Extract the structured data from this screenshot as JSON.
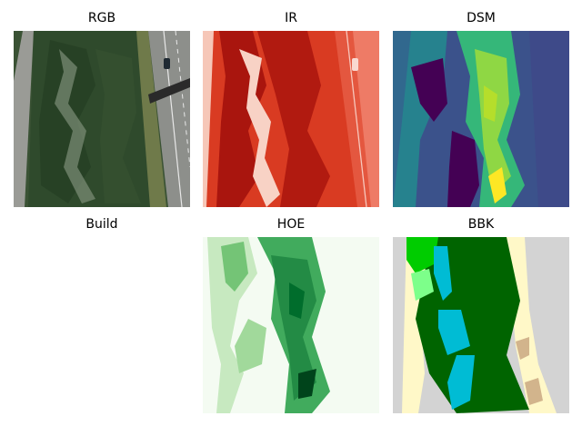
{
  "figure": {
    "panels": [
      {
        "title": "RGB"
      },
      {
        "title": "IR"
      },
      {
        "title": "DSM"
      },
      {
        "title": "Build"
      },
      {
        "title": "HOE"
      },
      {
        "title": "BBK"
      }
    ]
  },
  "colors": {
    "rgb_forest": "#2f4a2c",
    "rgb_road": "#8d8f8b",
    "ir_bg": "#d93b22",
    "ir_dark": "#9a1a10",
    "dsm_low": "#440154",
    "dsm_mid": "#21918c",
    "dsm_high": "#fde725",
    "hoe_light": "#f4fbf2",
    "hoe_dark": "#1e7a3a",
    "bbk_gray": "#d3d3d3",
    "bbk_cream": "#fff8c8",
    "bbk_darkgreen": "#006400",
    "bbk_lime": "#00cc00",
    "bbk_cyan": "#00bcd4",
    "bbk_mint": "#7dff8a",
    "bbk_tan": "#d2b48c"
  }
}
